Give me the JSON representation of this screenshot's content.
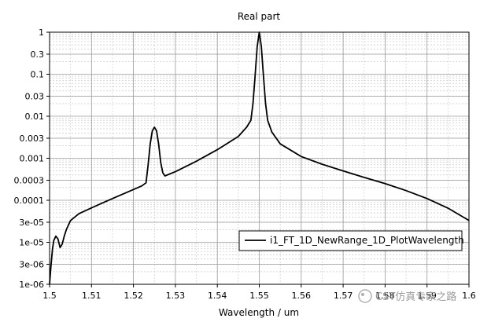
{
  "chart_data": {
    "type": "line",
    "title": "Real part",
    "xlabel": "Wavelength / um",
    "ylabel": "",
    "xlim": [
      1.5,
      1.6
    ],
    "ylim": [
      1e-06,
      1
    ],
    "yscale": "log",
    "grid": true,
    "legend_position": "bottom-right",
    "x_ticks": [
      "1.5",
      "1.51",
      "1.52",
      "1.53",
      "1.54",
      "1.55",
      "1.56",
      "1.57",
      "1.58",
      "1.59",
      "1.6"
    ],
    "y_ticks": [
      "1",
      "0.3",
      "0.1",
      "0.03",
      "0.01",
      "0.003",
      "0.001",
      "0.0003",
      "0.0001",
      "3e-05",
      "1e-05",
      "3e-06",
      "1e-06"
    ],
    "series": [
      {
        "name": "i1_FT_1D_NewRange_1D_PlotWavelength",
        "color": "#000000",
        "x": [
          1.5,
          1.5003,
          1.5007,
          1.501,
          1.5015,
          1.502,
          1.5025,
          1.503,
          1.5035,
          1.504,
          1.505,
          1.507,
          1.51,
          1.515,
          1.52,
          1.522,
          1.523,
          1.5235,
          1.524,
          1.5245,
          1.525,
          1.5255,
          1.526,
          1.5265,
          1.527,
          1.5275,
          1.53,
          1.535,
          1.54,
          1.545,
          1.547,
          1.548,
          1.5485,
          1.549,
          1.5495,
          1.55,
          1.5505,
          1.551,
          1.5515,
          1.552,
          1.553,
          1.555,
          1.56,
          1.565,
          1.57,
          1.575,
          1.58,
          1.585,
          1.59,
          1.595,
          1.6
        ],
        "y": [
          1e-06,
          2.5e-06,
          7e-06,
          1.1e-05,
          1.4e-05,
          1.2e-05,
          7.5e-06,
          9e-06,
          1.4e-05,
          2e-05,
          3.3e-05,
          4.8e-05,
          6.6e-05,
          0.00011,
          0.00018,
          0.00022,
          0.00026,
          0.0007,
          0.0022,
          0.0045,
          0.0055,
          0.0045,
          0.0022,
          0.0008,
          0.00045,
          0.00038,
          0.00048,
          0.00085,
          0.0016,
          0.0033,
          0.0055,
          0.008,
          0.02,
          0.09,
          0.45,
          1,
          0.45,
          0.09,
          0.02,
          0.008,
          0.0042,
          0.0022,
          0.0011,
          0.00072,
          0.0005,
          0.00035,
          0.00025,
          0.00017,
          0.00011,
          6.5e-05,
          3.3e-05
        ]
      }
    ]
  },
  "watermark": {
    "text": "CST仿真专家之路"
  }
}
